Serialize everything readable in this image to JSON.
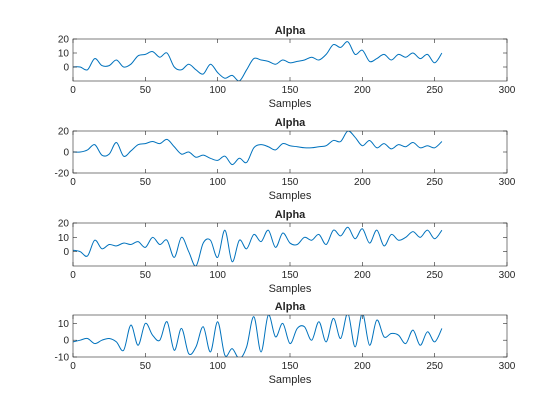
{
  "chart_data": [
    {
      "type": "line",
      "title": "Alpha",
      "xlabel": "Samples",
      "ylabel": "",
      "xlim": [
        0,
        300
      ],
      "ylim": [
        -10,
        20
      ],
      "xticks": [
        0,
        50,
        100,
        150,
        200,
        250,
        300
      ],
      "yticks": [
        0,
        10,
        20
      ],
      "grid": false,
      "line_color": "#0072BD",
      "series": [
        {
          "x": [
            0,
            5,
            10,
            15,
            20,
            25,
            30,
            35,
            40,
            45,
            50,
            55,
            60,
            65,
            70,
            75,
            80,
            85,
            90,
            95,
            100,
            105,
            110,
            115,
            120,
            125,
            130,
            135,
            140,
            145,
            150,
            155,
            160,
            165,
            170,
            175,
            180,
            185,
            190,
            195,
            200,
            205,
            210,
            215,
            220,
            225,
            230,
            235,
            240,
            245,
            250,
            255
          ],
          "y": [
            0,
            0,
            -2,
            6,
            1,
            1,
            5,
            0,
            2,
            8,
            9,
            11,
            7,
            10,
            0,
            -2,
            2,
            -2,
            -5,
            2,
            -4,
            -8,
            -6,
            -10,
            -2,
            6,
            5,
            4,
            2,
            5,
            3,
            4,
            5,
            7,
            5,
            9,
            16,
            14,
            18,
            9,
            12,
            4,
            6,
            9,
            5,
            9,
            7,
            10,
            6,
            9,
            3,
            10
          ]
        }
      ]
    },
    {
      "type": "line",
      "title": "Alpha",
      "xlabel": "Samples",
      "ylabel": "",
      "xlim": [
        0,
        300
      ],
      "ylim": [
        -20,
        20
      ],
      "xticks": [
        0,
        50,
        100,
        150,
        200,
        250,
        300
      ],
      "yticks": [
        -20,
        0,
        20
      ],
      "grid": false,
      "line_color": "#0072BD",
      "series": [
        {
          "x": [
            0,
            5,
            10,
            15,
            20,
            25,
            30,
            35,
            40,
            45,
            50,
            55,
            60,
            65,
            70,
            75,
            80,
            85,
            90,
            95,
            100,
            105,
            110,
            115,
            120,
            125,
            130,
            135,
            140,
            145,
            150,
            155,
            160,
            165,
            170,
            175,
            180,
            185,
            190,
            195,
            200,
            205,
            210,
            215,
            220,
            225,
            230,
            235,
            240,
            245,
            250,
            255
          ],
          "y": [
            0,
            0,
            2,
            7,
            -3,
            -2,
            9,
            -4,
            1,
            7,
            8,
            10,
            8,
            12,
            5,
            -2,
            0,
            -5,
            -3,
            -6,
            -8,
            -4,
            -12,
            -6,
            -10,
            4,
            7,
            5,
            2,
            8,
            6,
            5,
            4,
            4,
            5,
            6,
            11,
            10,
            20,
            14,
            6,
            11,
            4,
            8,
            3,
            7,
            5,
            9,
            4,
            6,
            4,
            10
          ]
        }
      ]
    },
    {
      "type": "line",
      "title": "Alpha",
      "xlabel": "Samples",
      "ylabel": "",
      "xlim": [
        0,
        300
      ],
      "ylim": [
        -10,
        20
      ],
      "xticks": [
        0,
        50,
        100,
        150,
        200,
        250,
        300
      ],
      "yticks": [
        0,
        10,
        20
      ],
      "grid": false,
      "line_color": "#0072BD",
      "series": [
        {
          "x": [
            0,
            5,
            10,
            15,
            20,
            25,
            30,
            35,
            40,
            45,
            50,
            55,
            60,
            65,
            70,
            75,
            80,
            85,
            90,
            95,
            100,
            105,
            110,
            115,
            120,
            125,
            130,
            135,
            140,
            145,
            150,
            155,
            160,
            165,
            170,
            175,
            180,
            185,
            190,
            195,
            200,
            205,
            210,
            215,
            220,
            225,
            230,
            235,
            240,
            245,
            250,
            255
          ],
          "y": [
            1,
            0,
            -3,
            8,
            2,
            5,
            4,
            6,
            5,
            7,
            3,
            10,
            5,
            8,
            -4,
            10,
            0,
            -10,
            6,
            8,
            -4,
            15,
            -7,
            8,
            2,
            12,
            7,
            15,
            3,
            13,
            6,
            5,
            10,
            8,
            12,
            5,
            15,
            11,
            17,
            9,
            16,
            6,
            15,
            4,
            12,
            8,
            10,
            14,
            10,
            15,
            9,
            15
          ]
        }
      ]
    },
    {
      "type": "line",
      "title": "Alpha",
      "xlabel": "Samples",
      "ylabel": "",
      "xlim": [
        0,
        300
      ],
      "ylim": [
        -10,
        15
      ],
      "xticks": [
        0,
        50,
        100,
        150,
        200,
        250,
        300
      ],
      "yticks": [
        -10,
        0,
        10
      ],
      "grid": false,
      "line_color": "#0072BD",
      "series": [
        {
          "x": [
            0,
            5,
            10,
            15,
            20,
            25,
            30,
            35,
            40,
            45,
            50,
            55,
            60,
            65,
            70,
            75,
            80,
            85,
            90,
            95,
            100,
            105,
            110,
            115,
            120,
            125,
            130,
            135,
            140,
            145,
            150,
            155,
            160,
            165,
            170,
            175,
            180,
            185,
            190,
            195,
            200,
            205,
            210,
            215,
            220,
            225,
            230,
            235,
            240,
            245,
            250,
            255
          ],
          "y": [
            -1,
            0,
            1,
            -2,
            0,
            1,
            -1,
            -6,
            9,
            -3,
            10,
            3,
            0,
            11,
            -6,
            7,
            -8,
            -4,
            8,
            -7,
            11,
            -9,
            -5,
            -11,
            -4,
            14,
            -7,
            15,
            2,
            10,
            -2,
            7,
            8,
            0,
            11,
            -1,
            13,
            1,
            16,
            -4,
            16,
            -3,
            12,
            2,
            4,
            3,
            -2,
            6,
            -3,
            5,
            -1,
            7
          ]
        }
      ]
    }
  ]
}
